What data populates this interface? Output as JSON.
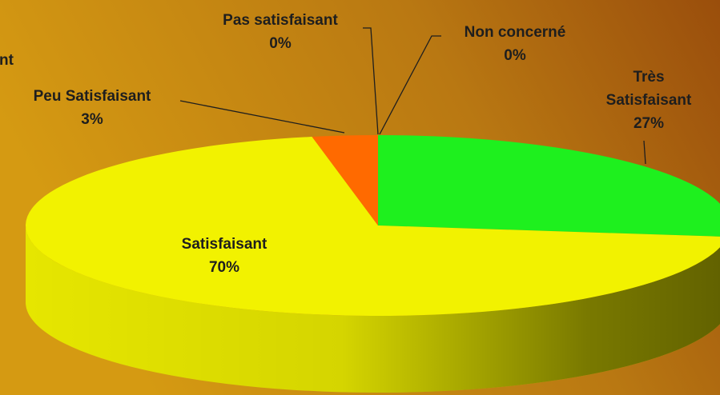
{
  "chart_data": {
    "type": "pie3d",
    "annotation": "nt",
    "categories": [
      "Très Satisfaisant",
      "Satisfaisant",
      "Peu Satisfaisant",
      "Pas satisfaisant",
      "Non concerné"
    ],
    "values": [
      27,
      70,
      3,
      0,
      0
    ],
    "value_labels": [
      "27%",
      "70%",
      "3%",
      "0%",
      "0%"
    ],
    "colors": [
      "#1ef01e",
      "#f2f200",
      "#ff6a00",
      "#d82020",
      "#2040d0"
    ],
    "start_angle": 0,
    "direction": "clockwise"
  }
}
